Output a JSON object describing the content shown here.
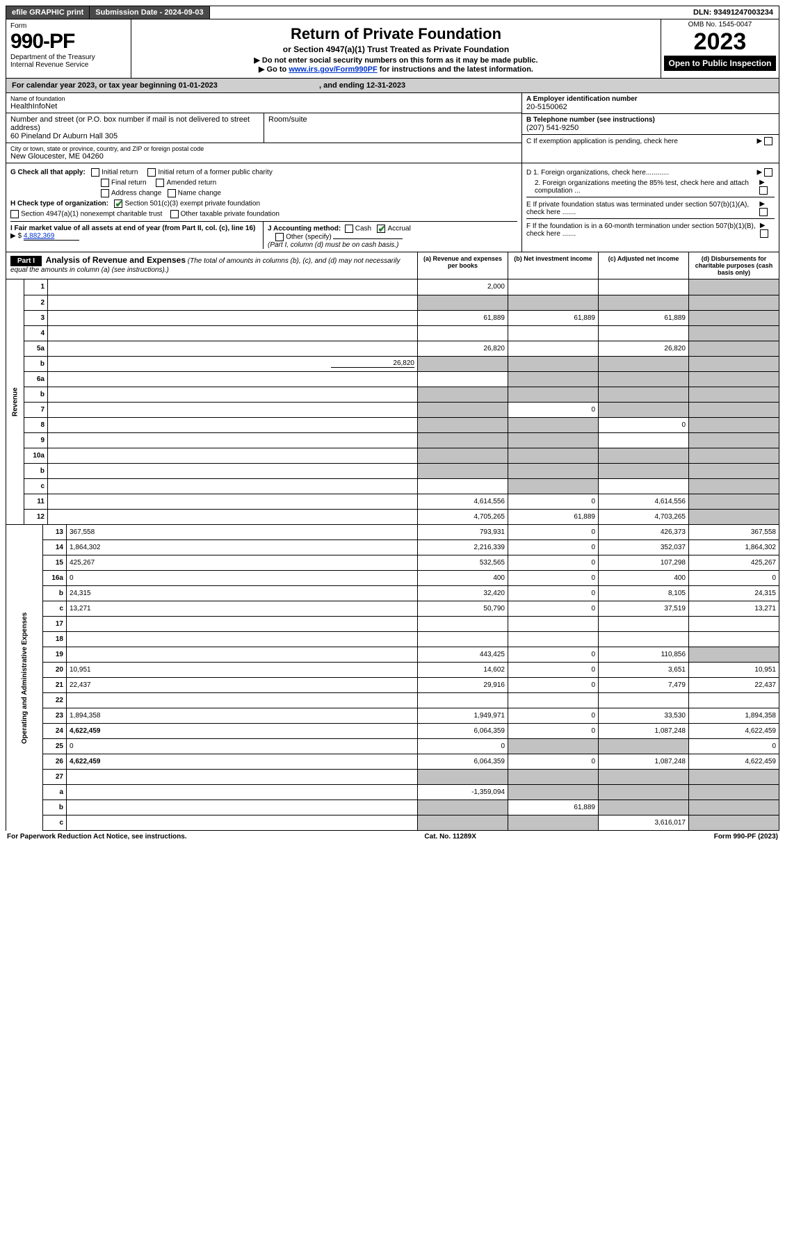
{
  "top": {
    "efile": "efile GRAPHIC print",
    "submission_label": "Submission Date - 2024-09-03",
    "dln_label": "DLN: 93491247003234"
  },
  "header": {
    "form_word": "Form",
    "form_no": "990-PF",
    "dept": "Department of the Treasury",
    "irs": "Internal Revenue Service",
    "title": "Return of Private Foundation",
    "subtitle": "or Section 4947(a)(1) Trust Treated as Private Foundation",
    "note1": "▶ Do not enter social security numbers on this form as it may be made public.",
    "note2_pre": "▶ Go to ",
    "note2_link": "www.irs.gov/Form990PF",
    "note2_post": " for instructions and the latest information.",
    "omb": "OMB No. 1545-0047",
    "year": "2023",
    "open": "Open to Public Inspection"
  },
  "calendar": {
    "text_a": "For calendar year 2023, or tax year beginning 01-01-2023",
    "text_b": ", and ending 12-31-2023"
  },
  "entity": {
    "name_lbl": "Name of foundation",
    "name": "HealthInfoNet",
    "addr_lbl": "Number and street (or P.O. box number if mail is not delivered to street address)",
    "addr": "60 Pineland Dr Auburn Hall 305",
    "room_lbl": "Room/suite",
    "city_lbl": "City or town, state or province, country, and ZIP or foreign postal code",
    "city": "New Gloucester, ME  04260",
    "ein_lbl": "A Employer identification number",
    "ein": "20-5150062",
    "phone_lbl": "B Telephone number (see instructions)",
    "phone": "(207) 541-9250",
    "c_lbl": "C If exemption application is pending, check here",
    "d1_lbl": "D 1. Foreign organizations, check here............",
    "d2_lbl": "2. Foreign organizations meeting the 85% test, check here and attach computation ...",
    "e_lbl": "E  If private foundation status was terminated under section 507(b)(1)(A), check here .......",
    "f_lbl": "F  If the foundation is in a 60-month termination under section 507(b)(1)(B), check here ......."
  },
  "checks": {
    "g_label": "G Check all that apply:",
    "initial": "Initial return",
    "final": "Final return",
    "address": "Address change",
    "initial_former": "Initial return of a former public charity",
    "amended": "Amended return",
    "name": "Name change",
    "h_label": "H Check type of organization:",
    "h_501": "Section 501(c)(3) exempt private foundation",
    "h_4947": "Section 4947(a)(1) nonexempt charitable trust",
    "h_other": "Other taxable private foundation",
    "i_label": "I Fair market value of all assets at end of year (from Part II, col. (c), line 16)",
    "i_val": "4,882,369",
    "j_label": "J Accounting method:",
    "j_cash": "Cash",
    "j_accrual": "Accrual",
    "j_other": "Other (specify)",
    "j_note": "(Part I, column (d) must be on cash basis.)"
  },
  "part1": {
    "label": "Part I",
    "title": "Analysis of Revenue and Expenses",
    "title_note": " (The total of amounts in columns (b), (c), and (d) may not necessarily equal the amounts in column (a) (see instructions).)",
    "col_a": "(a)  Revenue and expenses per books",
    "col_b": "(b)  Net investment income",
    "col_c": "(c)  Adjusted net income",
    "col_d": "(d)  Disbursements for charitable purposes (cash basis only)"
  },
  "revenue_label": "Revenue",
  "expense_label": "Operating and Administrative Expenses",
  "rows": [
    {
      "n": "1",
      "d": "",
      "a": "2,000",
      "b": "",
      "c": "",
      "d_grey": true
    },
    {
      "n": "2",
      "d": "",
      "a": "",
      "b": "",
      "c": "",
      "all_grey": true,
      "b_grey": true,
      "c_grey": true,
      "d_grey": true,
      "a_grey": true
    },
    {
      "n": "3",
      "d": "",
      "a": "61,889",
      "b": "61,889",
      "c": "61,889",
      "d_grey": true
    },
    {
      "n": "4",
      "d": "",
      "a": "",
      "b": "",
      "c": "",
      "d_grey": true
    },
    {
      "n": "5a",
      "d": "",
      "a": "26,820",
      "b": "",
      "c": "26,820",
      "d_grey": true
    },
    {
      "n": "b",
      "d": "",
      "extra": "26,820",
      "a": "",
      "b": "",
      "c": "",
      "all_grey": true
    },
    {
      "n": "6a",
      "d": "",
      "a": "",
      "b": "",
      "c": "",
      "b_grey": true,
      "c_grey": true,
      "d_grey": true
    },
    {
      "n": "b",
      "d": "",
      "a": "",
      "b": "",
      "c": "",
      "all_grey": true
    },
    {
      "n": "7",
      "d": "",
      "a": "",
      "b": "0",
      "c": "",
      "a_grey": true,
      "c_grey": true,
      "d_grey": true
    },
    {
      "n": "8",
      "d": "",
      "a": "",
      "b": "",
      "c": "0",
      "a_grey": true,
      "b_grey": true,
      "d_grey": true
    },
    {
      "n": "9",
      "d": "",
      "a": "",
      "b": "",
      "c": "",
      "a_grey": true,
      "b_grey": true,
      "d_grey": true
    },
    {
      "n": "10a",
      "d": "",
      "a": "",
      "b": "",
      "c": "",
      "all_grey": true
    },
    {
      "n": "b",
      "d": "",
      "a": "",
      "b": "",
      "c": "",
      "all_grey": true
    },
    {
      "n": "c",
      "d": "",
      "a": "",
      "b": "",
      "c": "",
      "b_grey": true,
      "d_grey": true
    },
    {
      "n": "11",
      "d": "",
      "a": "4,614,556",
      "b": "0",
      "c": "4,614,556",
      "d_grey": true
    },
    {
      "n": "12",
      "d": "",
      "a": "4,705,265",
      "b": "61,889",
      "c": "4,703,265",
      "d_grey": true,
      "bold": true
    }
  ],
  "exp_rows": [
    {
      "n": "13",
      "d": "367,558",
      "a": "793,931",
      "b": "0",
      "c": "426,373"
    },
    {
      "n": "14",
      "d": "1,864,302",
      "a": "2,216,339",
      "b": "0",
      "c": "352,037"
    },
    {
      "n": "15",
      "d": "425,267",
      "a": "532,565",
      "b": "0",
      "c": "107,298"
    },
    {
      "n": "16a",
      "d": "0",
      "a": "400",
      "b": "0",
      "c": "400"
    },
    {
      "n": "b",
      "d": "24,315",
      "a": "32,420",
      "b": "0",
      "c": "8,105"
    },
    {
      "n": "c",
      "d": "13,271",
      "a": "50,790",
      "b": "0",
      "c": "37,519"
    },
    {
      "n": "17",
      "d": "",
      "a": "",
      "b": "",
      "c": ""
    },
    {
      "n": "18",
      "d": "",
      "a": "",
      "b": "",
      "c": ""
    },
    {
      "n": "19",
      "d": "",
      "a": "443,425",
      "b": "0",
      "c": "110,856",
      "d_grey": true
    },
    {
      "n": "20",
      "d": "10,951",
      "a": "14,602",
      "b": "0",
      "c": "3,651"
    },
    {
      "n": "21",
      "d": "22,437",
      "a": "29,916",
      "b": "0",
      "c": "7,479"
    },
    {
      "n": "22",
      "d": "",
      "a": "",
      "b": "",
      "c": ""
    },
    {
      "n": "23",
      "d": "1,894,358",
      "a": "1,949,971",
      "b": "0",
      "c": "33,530"
    },
    {
      "n": "24",
      "d": "4,622,459",
      "a": "6,064,359",
      "b": "0",
      "c": "1,087,248",
      "bold": true
    },
    {
      "n": "25",
      "d": "0",
      "a": "0",
      "b": "",
      "c": "",
      "b_grey": true,
      "c_grey": true
    },
    {
      "n": "26",
      "d": "4,622,459",
      "a": "6,064,359",
      "b": "0",
      "c": "1,087,248",
      "bold": true
    },
    {
      "n": "27",
      "d": "",
      "a": "",
      "b": "",
      "c": "",
      "all_grey": true
    },
    {
      "n": "a",
      "d": "",
      "a": "-1,359,094",
      "b": "",
      "c": "",
      "b_grey": true,
      "c_grey": true,
      "d_grey": true,
      "bold": true
    },
    {
      "n": "b",
      "d": "",
      "a": "",
      "b": "61,889",
      "c": "",
      "a_grey": true,
      "c_grey": true,
      "d_grey": true,
      "bold": true
    },
    {
      "n": "c",
      "d": "",
      "a": "",
      "b": "",
      "c": "3,616,017",
      "a_grey": true,
      "b_grey": true,
      "d_grey": true,
      "bold": true
    }
  ],
  "footer": {
    "left": "For Paperwork Reduction Act Notice, see instructions.",
    "mid": "Cat. No. 11289X",
    "right": "Form 990-PF (2023)"
  },
  "colors": {
    "grey_header": "#cfcfcf",
    "grey_cell": "#c2c2c2",
    "link": "#0033cc",
    "check_green": "#2e7d32"
  }
}
